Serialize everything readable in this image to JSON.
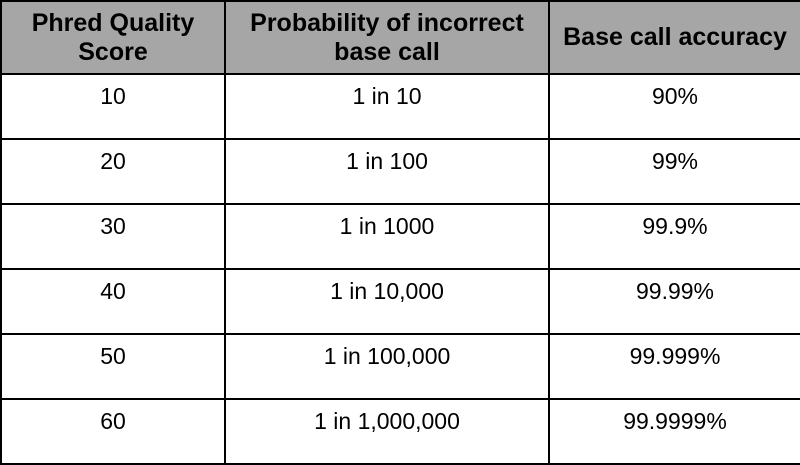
{
  "table": {
    "header_bg": "#a6a6a6",
    "border_color": "#000000",
    "columns": [
      "Phred Quality Score",
      "Probability of incorrect base call",
      "Base call accuracy"
    ],
    "rows": [
      [
        "10",
        "1 in 10",
        "90%"
      ],
      [
        "20",
        "1 in 100",
        "99%"
      ],
      [
        "30",
        "1 in 1000",
        "99.9%"
      ],
      [
        "40",
        "1 in 10,000",
        "99.99%"
      ],
      [
        "50",
        "1 in 100,000",
        "99.999%"
      ],
      [
        "60",
        "1 in 1,000,000",
        "99.9999%"
      ]
    ]
  }
}
